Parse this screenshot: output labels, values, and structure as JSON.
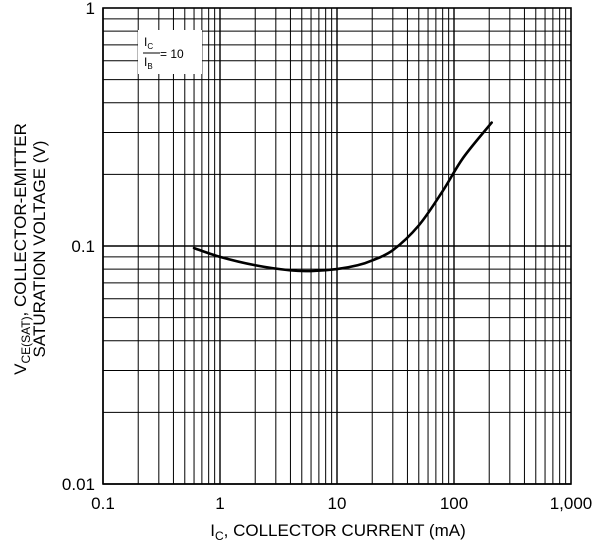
{
  "chart_data": {
    "type": "line",
    "xscale": "log",
    "yscale": "log",
    "xlim": [
      0.1,
      1000
    ],
    "ylim": [
      0.01,
      1
    ],
    "grid": true,
    "xlabel": {
      "main": "I",
      "sub": "C",
      "rest": ", COLLECTOR CURRENT (mA)"
    },
    "ylabel": {
      "line1_main": "V",
      "line1_sub": "CE(SAT)",
      "line1_rest": ", COLLECTOR-EMITTER",
      "line2": "SATURATION VOLTAGE (V)"
    },
    "x_ticks": [
      {
        "value": 0.1,
        "label": "0.1"
      },
      {
        "value": 1,
        "label": "1"
      },
      {
        "value": 10,
        "label": "10"
      },
      {
        "value": 100,
        "label": "100"
      },
      {
        "value": 1000,
        "label": "1,000"
      }
    ],
    "y_ticks": [
      {
        "value": 1,
        "label": "1"
      },
      {
        "value": 0.1,
        "label": "0.1"
      },
      {
        "value": 0.01,
        "label": "0.01"
      }
    ],
    "annotation": {
      "num_main": "I",
      "num_sub": "C",
      "den_main": "I",
      "den_sub": "B",
      "rest": " = 10"
    },
    "series": [
      {
        "color": "#000000",
        "x": [
          0.6,
          1.0,
          2.0,
          4.0,
          6.0,
          10,
          15,
          20,
          30,
          50,
          80,
          120,
          210
        ],
        "y": [
          0.098,
          0.09,
          0.083,
          0.079,
          0.0785,
          0.08,
          0.083,
          0.087,
          0.096,
          0.122,
          0.17,
          0.235,
          0.33
        ]
      }
    ]
  }
}
